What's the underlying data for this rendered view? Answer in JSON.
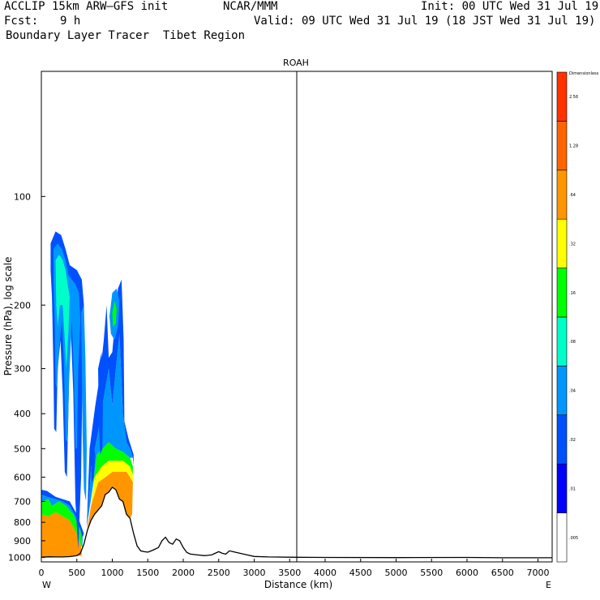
{
  "header": {
    "model": "ACCLIP 15km ARW—GFS init",
    "org": "NCAR/MMM",
    "init": "Init: 00 UTC Wed 31 Jul 19",
    "fcst_label": "Fcst:",
    "fcst_value": "9 h",
    "valid": "Valid: 09 UTC Wed 31 Jul 19 (18 JST Wed 31 Jul 19)",
    "field": "Boundary Layer Tracer  Tibet Region"
  },
  "chart_data": {
    "type": "cross-section",
    "title": "ROAH",
    "xlabel": "Distance (km)",
    "ylabel": "Pressure (hPa), log scale",
    "x_range": [
      0,
      7200
    ],
    "y_range_hpa": [
      1030,
      45
    ],
    "log_scale_y": true,
    "x_ticks": [
      0,
      500,
      1000,
      1500,
      2000,
      2500,
      3000,
      3500,
      4000,
      4500,
      5000,
      5500,
      6000,
      6500,
      7000
    ],
    "y_ticks": [
      100,
      200,
      300,
      400,
      500,
      600,
      700,
      800,
      900,
      1000
    ],
    "x_end_labels": {
      "left": "W",
      "right": "E"
    },
    "marker_line_x_km": 3600,
    "colorbar": {
      "unit_label": "Dimensionless",
      "labels": [
        ".005",
        ".01",
        ".02",
        ".04",
        ".08",
        ".16",
        ".32",
        ".64",
        "1.28",
        "2.56"
      ],
      "colors": [
        "#ffffff",
        "#0000ff",
        "#0050ff",
        "#0096ff",
        "#00ffc8",
        "#00ff00",
        "#ffff00",
        "#ff9600",
        "#ff6400",
        "#ff3200"
      ]
    },
    "terrain_hpa": [
      [
        0,
        1000
      ],
      [
        100,
        997
      ],
      [
        200,
        998
      ],
      [
        300,
        998
      ],
      [
        400,
        996
      ],
      [
        500,
        990
      ],
      [
        550,
        975
      ],
      [
        600,
        920
      ],
      [
        650,
        840
      ],
      [
        700,
        790
      ],
      [
        750,
        760
      ],
      [
        800,
        740
      ],
      [
        850,
        720
      ],
      [
        900,
        670
      ],
      [
        950,
        660
      ],
      [
        1000,
        640
      ],
      [
        1050,
        650
      ],
      [
        1100,
        690
      ],
      [
        1150,
        700
      ],
      [
        1200,
        760
      ],
      [
        1250,
        780
      ],
      [
        1300,
        860
      ],
      [
        1350,
        930
      ],
      [
        1400,
        960
      ],
      [
        1450,
        965
      ],
      [
        1500,
        968
      ],
      [
        1550,
        960
      ],
      [
        1600,
        950
      ],
      [
        1650,
        940
      ],
      [
        1700,
        900
      ],
      [
        1750,
        880
      ],
      [
        1800,
        910
      ],
      [
        1850,
        920
      ],
      [
        1900,
        890
      ],
      [
        1950,
        900
      ],
      [
        2000,
        940
      ],
      [
        2050,
        970
      ],
      [
        2100,
        980
      ],
      [
        2200,
        985
      ],
      [
        2300,
        990
      ],
      [
        2400,
        985
      ],
      [
        2450,
        975
      ],
      [
        2500,
        965
      ],
      [
        2550,
        975
      ],
      [
        2600,
        980
      ],
      [
        2650,
        960
      ],
      [
        2700,
        965
      ],
      [
        2750,
        970
      ],
      [
        2800,
        975
      ],
      [
        2900,
        985
      ],
      [
        3000,
        995
      ],
      [
        3200,
        998
      ],
      [
        3600,
        1000
      ],
      [
        4000,
        1001
      ],
      [
        5000,
        1002
      ],
      [
        6000,
        1001
      ],
      [
        6500,
        1003
      ],
      [
        7200,
        1003
      ]
    ],
    "tracer_regions": [
      {
        "level": ".64",
        "polygon": [
          [
            0,
            997
          ],
          [
            0,
            760
          ],
          [
            100,
            770
          ],
          [
            200,
            750
          ],
          [
            300,
            770
          ],
          [
            400,
            790
          ],
          [
            500,
            860
          ],
          [
            560,
            930
          ],
          [
            570,
            990
          ],
          [
            400,
            996
          ],
          [
            200,
            998
          ]
        ]
      },
      {
        "level": ".16",
        "polygon": [
          [
            0,
            760
          ],
          [
            0,
            700
          ],
          [
            100,
            690
          ],
          [
            150,
            720
          ],
          [
            250,
            700
          ],
          [
            350,
            720
          ],
          [
            450,
            760
          ],
          [
            550,
            840
          ],
          [
            580,
            940
          ],
          [
            560,
            930
          ],
          [
            500,
            860
          ],
          [
            400,
            790
          ],
          [
            300,
            770
          ],
          [
            200,
            750
          ],
          [
            100,
            770
          ]
        ]
      },
      {
        "level": ".04",
        "polygon": [
          [
            0,
            700
          ],
          [
            0,
            670
          ],
          [
            80,
            680
          ],
          [
            200,
            690
          ],
          [
            300,
            700
          ],
          [
            400,
            720
          ],
          [
            500,
            780
          ],
          [
            580,
            880
          ],
          [
            580,
            940
          ],
          [
            550,
            840
          ],
          [
            450,
            760
          ],
          [
            350,
            720
          ],
          [
            250,
            700
          ],
          [
            150,
            720
          ],
          [
            100,
            690
          ]
        ]
      },
      {
        "level": ".02",
        "polygon": [
          [
            0,
            670
          ],
          [
            0,
            650
          ],
          [
            80,
            655
          ],
          [
            200,
            680
          ],
          [
            300,
            690
          ],
          [
            400,
            700
          ],
          [
            500,
            760
          ],
          [
            600,
            860
          ],
          [
            580,
            880
          ],
          [
            500,
            780
          ],
          [
            400,
            720
          ],
          [
            300,
            700
          ],
          [
            200,
            690
          ],
          [
            80,
            680
          ]
        ]
      },
      {
        "level": ".64",
        "polygon": [
          [
            650,
            830
          ],
          [
            700,
            720
          ],
          [
            800,
            620
          ],
          [
            900,
            600
          ],
          [
            1000,
            580
          ],
          [
            1100,
            580
          ],
          [
            1200,
            580
          ],
          [
            1250,
            600
          ],
          [
            1290,
            620
          ],
          [
            1280,
            760
          ],
          [
            1250,
            780
          ],
          [
            1200,
            760
          ],
          [
            1150,
            700
          ],
          [
            1100,
            690
          ],
          [
            1050,
            650
          ],
          [
            1000,
            640
          ],
          [
            950,
            660
          ],
          [
            900,
            670
          ],
          [
            850,
            720
          ],
          [
            800,
            740
          ],
          [
            750,
            760
          ],
          [
            700,
            790
          ]
        ]
      },
      {
        "level": ".32",
        "polygon": [
          [
            700,
            720
          ],
          [
            750,
            600
          ],
          [
            850,
            560
          ],
          [
            950,
            540
          ],
          [
            1050,
            540
          ],
          [
            1150,
            540
          ],
          [
            1250,
            560
          ],
          [
            1290,
            590
          ],
          [
            1290,
            620
          ],
          [
            1250,
            600
          ],
          [
            1200,
            580
          ],
          [
            1100,
            580
          ],
          [
            1000,
            580
          ],
          [
            900,
            600
          ],
          [
            800,
            620
          ]
        ]
      },
      {
        "level": ".16",
        "polygon": [
          [
            720,
            650
          ],
          [
            780,
            520
          ],
          [
            860,
            500
          ],
          [
            950,
            480
          ],
          [
            1050,
            500
          ],
          [
            1150,
            510
          ],
          [
            1250,
            530
          ],
          [
            1290,
            560
          ],
          [
            1290,
            590
          ],
          [
            1250,
            560
          ],
          [
            1150,
            540
          ],
          [
            1050,
            540
          ],
          [
            950,
            540
          ],
          [
            850,
            560
          ],
          [
            750,
            600
          ]
        ]
      },
      {
        "level": ".04",
        "polygon": [
          [
            650,
            800
          ],
          [
            700,
            560
          ],
          [
            800,
            450
          ],
          [
            880,
            360
          ],
          [
            950,
            300
          ],
          [
            1000,
            380
          ],
          [
            1050,
            300
          ],
          [
            1100,
            240
          ],
          [
            1150,
            400
          ],
          [
            1200,
            480
          ],
          [
            1250,
            500
          ],
          [
            1290,
            530
          ],
          [
            1250,
            530
          ],
          [
            1150,
            510
          ],
          [
            1050,
            500
          ],
          [
            950,
            480
          ],
          [
            860,
            500
          ],
          [
            780,
            520
          ],
          [
            720,
            650
          ]
        ]
      },
      {
        "level": ".02",
        "polygon": [
          [
            640,
            830
          ],
          [
            680,
            500
          ],
          [
            760,
            380
          ],
          [
            830,
            310
          ],
          [
            880,
            250
          ],
          [
            920,
            200
          ],
          [
            950,
            280
          ],
          [
            1000,
            270
          ],
          [
            1040,
            220
          ],
          [
            1080,
            180
          ],
          [
            1130,
            170
          ],
          [
            1160,
            250
          ],
          [
            1170,
            420
          ],
          [
            1230,
            470
          ],
          [
            1300,
            520
          ],
          [
            1300,
            560
          ],
          [
            1290,
            530
          ],
          [
            1250,
            500
          ],
          [
            1200,
            480
          ],
          [
            1150,
            400
          ],
          [
            1100,
            240
          ],
          [
            1050,
            300
          ],
          [
            1000,
            380
          ],
          [
            950,
            300
          ],
          [
            880,
            360
          ],
          [
            800,
            450
          ],
          [
            700,
            560
          ],
          [
            650,
            800
          ]
        ]
      },
      {
        "level": ".04",
        "polygon": [
          [
            960,
            215
          ],
          [
            1000,
            185
          ],
          [
            1060,
            180
          ],
          [
            1100,
            195
          ],
          [
            1080,
            230
          ],
          [
            1030,
            250
          ],
          [
            980,
            240
          ]
        ]
      },
      {
        "level": ".16",
        "polygon": [
          [
            1000,
            210
          ],
          [
            1030,
            195
          ],
          [
            1060,
            205
          ],
          [
            1050,
            225
          ],
          [
            1010,
            230
          ]
        ]
      },
      {
        "level": ".02",
        "polygon": [
          [
            130,
            135
          ],
          [
            200,
            125
          ],
          [
            280,
            128
          ],
          [
            340,
            140
          ],
          [
            400,
            155
          ],
          [
            500,
            160
          ],
          [
            570,
            170
          ],
          [
            600,
            200
          ],
          [
            580,
            300
          ],
          [
            560,
            600
          ],
          [
            520,
            950
          ],
          [
            480,
            700
          ],
          [
            450,
            350
          ],
          [
            410,
            220
          ],
          [
            380,
            400
          ],
          [
            360,
            600
          ],
          [
            330,
            580
          ],
          [
            300,
            350
          ],
          [
            270,
            250
          ],
          [
            230,
            300
          ],
          [
            210,
            450
          ],
          [
            180,
            440
          ],
          [
            170,
            300
          ],
          [
            150,
            190
          ],
          [
            130,
            160
          ]
        ]
      },
      {
        "level": ".04",
        "polygon": [
          [
            170,
            140
          ],
          [
            230,
            135
          ],
          [
            290,
            140
          ],
          [
            340,
            150
          ],
          [
            380,
            165
          ],
          [
            430,
            170
          ],
          [
            480,
            175
          ],
          [
            530,
            185
          ],
          [
            550,
            220
          ],
          [
            520,
            300
          ],
          [
            500,
            500
          ],
          [
            480,
            500
          ],
          [
            460,
            320
          ],
          [
            430,
            220
          ],
          [
            390,
            330
          ],
          [
            370,
            480
          ],
          [
            340,
            470
          ],
          [
            320,
            300
          ],
          [
            290,
            220
          ],
          [
            250,
            260
          ],
          [
            220,
            340
          ],
          [
            200,
            330
          ],
          [
            190,
            230
          ],
          [
            170,
            170
          ]
        ]
      },
      {
        "level": ".08",
        "polygon": [
          [
            200,
            150
          ],
          [
            250,
            145
          ],
          [
            300,
            150
          ],
          [
            340,
            160
          ],
          [
            370,
            175
          ],
          [
            400,
            190
          ],
          [
            380,
            240
          ],
          [
            350,
            300
          ],
          [
            330,
            250
          ],
          [
            300,
            200
          ],
          [
            260,
            200
          ],
          [
            230,
            230
          ],
          [
            210,
            200
          ]
        ]
      },
      {
        "level": ".04",
        "polygon": [
          [
            560,
            210
          ],
          [
            600,
            200
          ],
          [
            620,
            280
          ],
          [
            640,
            500
          ],
          [
            630,
            700
          ],
          [
            600,
            650
          ],
          [
            580,
            450
          ],
          [
            570,
            300
          ]
        ]
      },
      {
        "level": ".02",
        "polygon": [
          [
            800,
            300
          ],
          [
            850,
            270
          ],
          [
            870,
            350
          ],
          [
            860,
            500
          ],
          [
            830,
            520
          ],
          [
            810,
            420
          ]
        ]
      },
      {
        "level": ".02",
        "polygon": [
          [
            700,
            540
          ],
          [
            730,
            480
          ],
          [
            760,
            520
          ],
          [
            740,
            600
          ],
          [
            710,
            620
          ]
        ]
      }
    ]
  }
}
